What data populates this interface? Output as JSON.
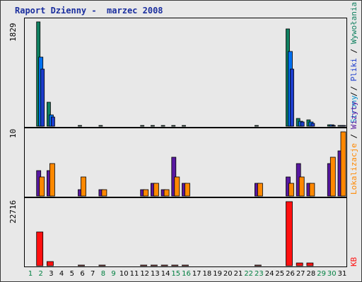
{
  "title": "Raport Dzienny -  marzec 2008",
  "legend": {
    "pages": "Wywołania",
    "sep1": " / ",
    "files": "Pliki",
    "sep2": " / ",
    "hits": "Strony",
    "sep3": " / ",
    "visits": "Wizyty",
    "sep4": " / ",
    "sites": "Lokalizacje",
    "kb": "KB"
  },
  "colors": {
    "hits": "#108060",
    "files": "#0070f0",
    "pages": "#1c3ccc",
    "visits": "#5818a0",
    "sites": "#ff8800",
    "kb": "#ff1010",
    "weekend_label": "#008040",
    "weekday_label": "#000000",
    "title": "#1a2e9e"
  },
  "chart_data": [
    {
      "type": "bar",
      "panel": "top",
      "ymax_label": "1829",
      "ylim": [
        0,
        1829
      ],
      "x": [
        1,
        2,
        3,
        4,
        5,
        6,
        7,
        8,
        9,
        10,
        11,
        12,
        13,
        14,
        15,
        16,
        17,
        18,
        19,
        20,
        21,
        22,
        23,
        24,
        25,
        26,
        27,
        28,
        29,
        30,
        31
      ],
      "series": [
        {
          "name": "Wywołania",
          "values": [
            0,
            1829,
            420,
            0,
            0,
            12,
            0,
            12,
            0,
            0,
            0,
            12,
            12,
            12,
            12,
            12,
            0,
            0,
            0,
            0,
            0,
            0,
            12,
            0,
            0,
            1700,
            130,
            110,
            0,
            30,
            12
          ]
        },
        {
          "name": "Pliki",
          "values": [
            0,
            1210,
            200,
            0,
            0,
            0,
            0,
            0,
            0,
            0,
            0,
            0,
            0,
            0,
            0,
            0,
            0,
            0,
            0,
            0,
            0,
            0,
            0,
            0,
            0,
            1310,
            90,
            70,
            0,
            20,
            5
          ]
        },
        {
          "name": "Strony",
          "values": [
            0,
            1000,
            160,
            0,
            0,
            0,
            0,
            0,
            0,
            0,
            0,
            0,
            0,
            0,
            0,
            0,
            0,
            0,
            0,
            0,
            0,
            0,
            0,
            0,
            0,
            1000,
            70,
            50,
            0,
            15,
            5
          ]
        }
      ]
    },
    {
      "type": "bar",
      "panel": "middle",
      "ymax_label": "10",
      "ylim": [
        0,
        10
      ],
      "x": [
        1,
        2,
        3,
        4,
        5,
        6,
        7,
        8,
        9,
        10,
        11,
        12,
        13,
        14,
        15,
        16,
        17,
        18,
        19,
        20,
        21,
        22,
        23,
        24,
        25,
        26,
        27,
        28,
        29,
        30,
        31
      ],
      "series": [
        {
          "name": "Wizyty",
          "values": [
            0,
            4,
            4,
            0,
            0,
            1,
            0,
            1,
            0,
            0,
            0,
            1,
            2,
            1,
            6,
            2,
            0,
            0,
            0,
            0,
            0,
            0,
            2,
            0,
            0,
            3,
            5,
            2,
            0,
            5,
            7
          ]
        },
        {
          "name": "Lokalizacje",
          "values": [
            0,
            3,
            5,
            0,
            0,
            3,
            0,
            1,
            0,
            0,
            0,
            1,
            2,
            1,
            3,
            2,
            0,
            0,
            0,
            0,
            0,
            0,
            2,
            0,
            0,
            2,
            3,
            2,
            0,
            6,
            10
          ]
        }
      ]
    },
    {
      "type": "bar",
      "panel": "bottom",
      "ymax_label": "22716",
      "ylim": [
        0,
        22716
      ],
      "x": [
        1,
        2,
        3,
        4,
        5,
        6,
        7,
        8,
        9,
        10,
        11,
        12,
        13,
        14,
        15,
        16,
        17,
        18,
        19,
        20,
        21,
        22,
        23,
        24,
        25,
        26,
        27,
        28,
        29,
        30,
        31
      ],
      "series": [
        {
          "name": "KB",
          "values": [
            0,
            12000,
            1500,
            0,
            0,
            250,
            0,
            250,
            0,
            0,
            0,
            250,
            250,
            250,
            250,
            250,
            0,
            0,
            0,
            0,
            0,
            0,
            250,
            0,
            0,
            22716,
            900,
            1000,
            0,
            0,
            0
          ]
        }
      ]
    }
  ],
  "x_labels": [
    "1",
    "2",
    "3",
    "4",
    "5",
    "6",
    "7",
    "8",
    "9",
    "10",
    "11",
    "12",
    "13",
    "14",
    "15",
    "16",
    "17",
    "18",
    "19",
    "20",
    "21",
    "22",
    "23",
    "24",
    "25",
    "26",
    "27",
    "28",
    "29",
    "30",
    "31"
  ],
  "weekend_days": [
    1,
    2,
    8,
    9,
    15,
    16,
    22,
    23,
    29,
    30
  ]
}
